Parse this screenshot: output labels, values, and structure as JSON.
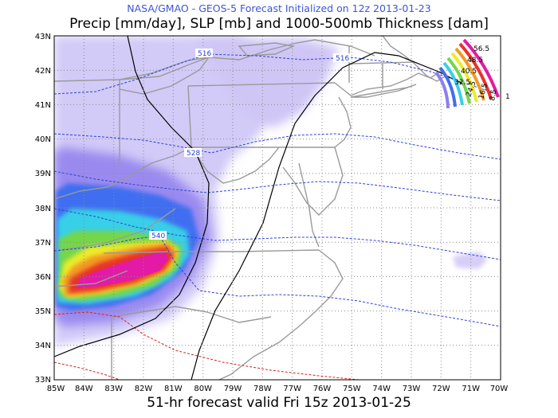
{
  "header": {
    "line1": "NASA/GMAO - GEOS-5 Forecast Initialized on 12z 2013-01-23",
    "line2": "Precip [mm/day], SLP [mb] and 1000-500mb Thickness [dam]"
  },
  "footer": {
    "valid_text": "51-hr forecast valid Fri 15z 2013-01-25"
  },
  "axes": {
    "lat_labels": [
      "43N",
      "42N",
      "41N",
      "40N",
      "39N",
      "38N",
      "37N",
      "36N",
      "35N",
      "34N",
      "33N"
    ],
    "lon_labels": [
      "85W",
      "84W",
      "83W",
      "82W",
      "81W",
      "80W",
      "79W",
      "78W",
      "77W",
      "76W",
      "75W",
      "74W",
      "73W",
      "72W",
      "71W",
      "70W"
    ]
  },
  "thickness_labels": [
    "516",
    "516",
    "528",
    "540"
  ],
  "colorbar": {
    "labels": [
      "56.5",
      "48.5",
      "40.5",
      "32.5",
      "24.5",
      "16.5",
      "8.5",
      "1"
    ]
  },
  "colors": {
    "precip_light": "#c9c0f5",
    "precip_mid": "#8f7df0",
    "precip_blue": "#3f6ef0",
    "precip_cyan": "#39cfe8",
    "precip_green": "#74d64a",
    "precip_yellow": "#ecec2a",
    "precip_orange": "#f39a21",
    "precip_red": "#e8332a",
    "precip_magenta": "#e21aa6",
    "thickness_cold": "#2943d8",
    "thickness_warm": "#d8231e",
    "borders": "#9a9a9a",
    "slp": "#000000"
  }
}
